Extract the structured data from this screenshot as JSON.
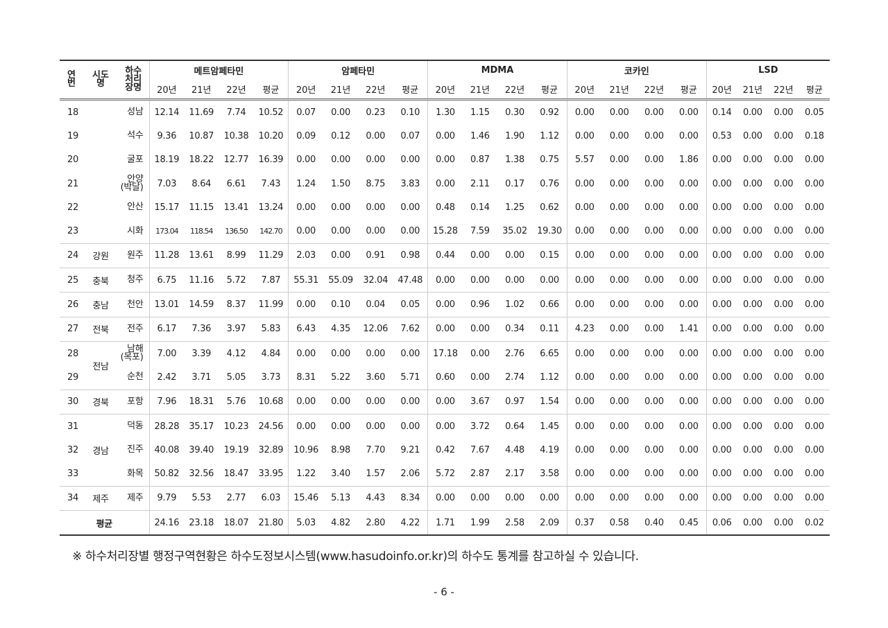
{
  "table": {
    "headers": {
      "no": "연\n번",
      "sido": "시도\n명",
      "plant": "하수\n처리\n장명"
    },
    "drugs": [
      "메트암페타민",
      "암페타민",
      "MDMA",
      "코카인",
      "LSD"
    ],
    "years": [
      "20년",
      "21년",
      "22년",
      "평균"
    ],
    "groups": [
      {
        "sido": "",
        "rows": [
          {
            "no": "18",
            "plant": "성남",
            "v": [
              "12.14",
              "11.69",
              "7.74",
              "10.52",
              "0.07",
              "0.00",
              "0.23",
              "0.10",
              "1.30",
              "1.15",
              "0.30",
              "0.92",
              "0.00",
              "0.00",
              "0.00",
              "0.00",
              "0.14",
              "0.00",
              "0.00",
              "0.05"
            ]
          },
          {
            "no": "19",
            "plant": "석수",
            "v": [
              "9.36",
              "10.87",
              "10.38",
              "10.20",
              "0.09",
              "0.12",
              "0.00",
              "0.07",
              "0.00",
              "1.46",
              "1.90",
              "1.12",
              "0.00",
              "0.00",
              "0.00",
              "0.00",
              "0.53",
              "0.00",
              "0.00",
              "0.18"
            ]
          },
          {
            "no": "20",
            "plant": "굴포",
            "v": [
              "18.19",
              "18.22",
              "12.77",
              "16.39",
              "0.00",
              "0.00",
              "0.00",
              "0.00",
              "0.00",
              "0.87",
              "1.38",
              "0.75",
              "5.57",
              "0.00",
              "0.00",
              "1.86",
              "0.00",
              "0.00",
              "0.00",
              "0.00"
            ]
          },
          {
            "no": "21",
            "plant": "안양\n(박달)",
            "v": [
              "7.03",
              "8.64",
              "6.61",
              "7.43",
              "1.24",
              "1.50",
              "8.75",
              "3.83",
              "0.00",
              "2.11",
              "0.17",
              "0.76",
              "0.00",
              "0.00",
              "0.00",
              "0.00",
              "0.00",
              "0.00",
              "0.00",
              "0.00"
            ]
          },
          {
            "no": "22",
            "plant": "안산",
            "v": [
              "15.17",
              "11.15",
              "13.41",
              "13.24",
              "0.00",
              "0.00",
              "0.00",
              "0.00",
              "0.48",
              "0.14",
              "1.25",
              "0.62",
              "0.00",
              "0.00",
              "0.00",
              "0.00",
              "0.00",
              "0.00",
              "0.00",
              "0.00"
            ]
          },
          {
            "no": "23",
            "plant": "시화",
            "small": true,
            "v": [
              "173.04",
              "118.54",
              "136.50",
              "142.70",
              "0.00",
              "0.00",
              "0.00",
              "0.00",
              "15.28",
              "7.59",
              "35.02",
              "19.30",
              "0.00",
              "0.00",
              "0.00",
              "0.00",
              "0.00",
              "0.00",
              "0.00",
              "0.00"
            ]
          }
        ]
      },
      {
        "sido": "강원",
        "rows": [
          {
            "no": "24",
            "plant": "원주",
            "v": [
              "11.28",
              "13.61",
              "8.99",
              "11.29",
              "2.03",
              "0.00",
              "0.91",
              "0.98",
              "0.44",
              "0.00",
              "0.00",
              "0.15",
              "0.00",
              "0.00",
              "0.00",
              "0.00",
              "0.00",
              "0.00",
              "0.00",
              "0.00"
            ]
          }
        ]
      },
      {
        "sido": "충북",
        "rows": [
          {
            "no": "25",
            "plant": "청주",
            "v": [
              "6.75",
              "11.16",
              "5.72",
              "7.87",
              "55.31",
              "55.09",
              "32.04",
              "47.48",
              "0.00",
              "0.00",
              "0.00",
              "0.00",
              "0.00",
              "0.00",
              "0.00",
              "0.00",
              "0.00",
              "0.00",
              "0.00",
              "0.00"
            ]
          }
        ]
      },
      {
        "sido": "충남",
        "rows": [
          {
            "no": "26",
            "plant": "천안",
            "v": [
              "13.01",
              "14.59",
              "8.37",
              "11.99",
              "0.00",
              "0.10",
              "0.04",
              "0.05",
              "0.00",
              "0.96",
              "1.02",
              "0.66",
              "0.00",
              "0.00",
              "0.00",
              "0.00",
              "0.00",
              "0.00",
              "0.00",
              "0.00"
            ]
          }
        ]
      },
      {
        "sido": "전북",
        "rows": [
          {
            "no": "27",
            "plant": "전주",
            "v": [
              "6.17",
              "7.36",
              "3.97",
              "5.83",
              "6.43",
              "4.35",
              "12.06",
              "7.62",
              "0.00",
              "0.00",
              "0.34",
              "0.11",
              "4.23",
              "0.00",
              "0.00",
              "1.41",
              "0.00",
              "0.00",
              "0.00",
              "0.00"
            ]
          }
        ]
      },
      {
        "sido": "전남",
        "rows": [
          {
            "no": "28",
            "plant": "남해\n(목포)",
            "v": [
              "7.00",
              "3.39",
              "4.12",
              "4.84",
              "0.00",
              "0.00",
              "0.00",
              "0.00",
              "17.18",
              "0.00",
              "2.76",
              "6.65",
              "0.00",
              "0.00",
              "0.00",
              "0.00",
              "0.00",
              "0.00",
              "0.00",
              "0.00"
            ]
          },
          {
            "no": "29",
            "plant": "순천",
            "v": [
              "2.42",
              "3.71",
              "5.05",
              "3.73",
              "8.31",
              "5.22",
              "3.60",
              "5.71",
              "0.60",
              "0.00",
              "2.74",
              "1.12",
              "0.00",
              "0.00",
              "0.00",
              "0.00",
              "0.00",
              "0.00",
              "0.00",
              "0.00"
            ]
          }
        ]
      },
      {
        "sido": "경북",
        "rows": [
          {
            "no": "30",
            "plant": "포항",
            "v": [
              "7.96",
              "18.31",
              "5.76",
              "10.68",
              "0.00",
              "0.00",
              "0.00",
              "0.00",
              "0.00",
              "3.67",
              "0.97",
              "1.54",
              "0.00",
              "0.00",
              "0.00",
              "0.00",
              "0.00",
              "0.00",
              "0.00",
              "0.00"
            ]
          }
        ]
      },
      {
        "sido": "경남",
        "rows": [
          {
            "no": "31",
            "plant": "덕동",
            "v": [
              "28.28",
              "35.17",
              "10.23",
              "24.56",
              "0.00",
              "0.00",
              "0.00",
              "0.00",
              "0.00",
              "3.72",
              "0.64",
              "1.45",
              "0.00",
              "0.00",
              "0.00",
              "0.00",
              "0.00",
              "0.00",
              "0.00",
              "0.00"
            ]
          },
          {
            "no": "32",
            "plant": "진주",
            "v": [
              "40.08",
              "39.40",
              "19.19",
              "32.89",
              "10.96",
              "8.98",
              "7.70",
              "9.21",
              "0.42",
              "7.67",
              "4.48",
              "4.19",
              "0.00",
              "0.00",
              "0.00",
              "0.00",
              "0.00",
              "0.00",
              "0.00",
              "0.00"
            ]
          },
          {
            "no": "33",
            "plant": "화목",
            "v": [
              "50.82",
              "32.56",
              "18.47",
              "33.95",
              "1.22",
              "3.40",
              "1.57",
              "2.06",
              "5.72",
              "2.87",
              "2.17",
              "3.58",
              "0.00",
              "0.00",
              "0.00",
              "0.00",
              "0.00",
              "0.00",
              "0.00",
              "0.00"
            ]
          }
        ]
      },
      {
        "sido": "제주",
        "rows": [
          {
            "no": "34",
            "plant": "제주",
            "v": [
              "9.79",
              "5.53",
              "2.77",
              "6.03",
              "15.46",
              "5.13",
              "4.43",
              "8.34",
              "0.00",
              "0.00",
              "0.00",
              "0.00",
              "0.00",
              "0.00",
              "0.00",
              "0.00",
              "0.00",
              "0.00",
              "0.00",
              "0.00"
            ]
          }
        ]
      }
    ],
    "average": {
      "label": "평균",
      "v": [
        "24.16",
        "23.18",
        "18.07",
        "21.80",
        "5.03",
        "4.82",
        "2.80",
        "4.22",
        "1.71",
        "1.99",
        "2.58",
        "2.09",
        "0.37",
        "0.58",
        "0.40",
        "0.45",
        "0.06",
        "0.00",
        "0.00",
        "0.02"
      ]
    }
  },
  "note": "※ 하수처리장별 행정구역현황은 하수도정보시스템(www.hasudoinfo.or.kr)의 하수도 통계를 참고하실 수 있습니다.",
  "page_number": "- 6 -"
}
